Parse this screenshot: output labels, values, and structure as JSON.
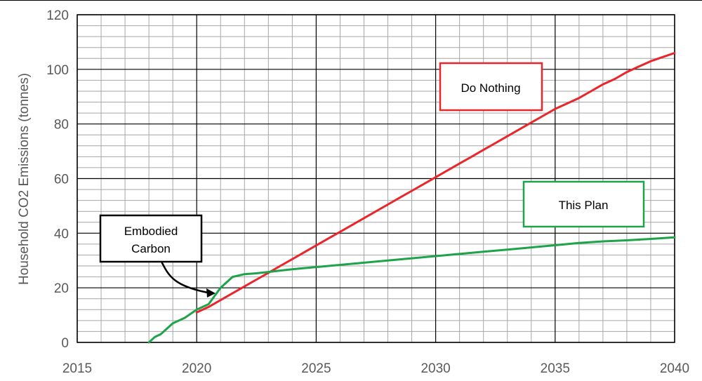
{
  "chart_data": {
    "type": "line",
    "title": "",
    "xlabel": "",
    "ylabel": "Household CO2 Emissions (tonnes)",
    "xlim": [
      2015,
      2040
    ],
    "ylim": [
      0,
      120
    ],
    "x_ticks": [
      "2015",
      "2020",
      "2025",
      "2030",
      "2035",
      "2040"
    ],
    "y_ticks": [
      "0",
      "20",
      "40",
      "60",
      "80",
      "100",
      "120"
    ],
    "grid": true,
    "series": [
      {
        "name": "Do Nothing",
        "color": "#e8262b",
        "x": [
          2020.0,
          2020.5,
          2021.0,
          2021.5,
          2022.0,
          2022.5,
          2023.0,
          2023.5,
          2024.0,
          2024.5,
          2025.0,
          2025.5,
          2026.0,
          2026.5,
          2027.0,
          2027.5,
          2028.0,
          2028.5,
          2029.0,
          2029.5,
          2030.0,
          2030.5,
          2031.0,
          2031.5,
          2032.0,
          2032.5,
          2033.0,
          2033.5,
          2034.0,
          2034.5,
          2035.0,
          2035.5,
          2036.0,
          2036.5,
          2037.0,
          2037.5,
          2038.0,
          2038.5,
          2039.0,
          2039.5,
          2040.0
        ],
        "y": [
          11.0,
          13.0,
          15.5,
          18.0,
          20.5,
          23.0,
          25.5,
          28.0,
          30.5,
          33.0,
          35.5,
          38.0,
          40.5,
          43.0,
          45.5,
          48.0,
          50.5,
          53.0,
          55.5,
          58.0,
          60.5,
          63.0,
          65.5,
          68.0,
          70.5,
          73.0,
          75.5,
          78.0,
          80.5,
          83.0,
          85.5,
          87.5,
          89.5,
          92.0,
          94.5,
          96.5,
          99.0,
          101.0,
          103.0,
          104.5,
          106.0
        ]
      },
      {
        "name": "This Plan",
        "color": "#1fa34a",
        "x": [
          2018.0,
          2018.25,
          2018.5,
          2018.75,
          2019.0,
          2019.25,
          2019.5,
          2019.75,
          2020.0,
          2020.25,
          2020.5,
          2020.75,
          2021.0,
          2021.25,
          2021.5,
          2021.75,
          2022.0,
          2022.5,
          2023.0,
          2023.5,
          2024.0,
          2024.5,
          2025.0,
          2026.0,
          2027.0,
          2028.0,
          2029.0,
          2030.0,
          2031.0,
          2032.0,
          2033.0,
          2034.0,
          2035.0,
          2036.0,
          2037.0,
          2038.0,
          2039.0,
          2040.0
        ],
        "y": [
          0.0,
          2.0,
          3.0,
          5.0,
          7.0,
          8.0,
          9.0,
          10.5,
          12.0,
          13.0,
          14.0,
          17.0,
          20.0,
          22.0,
          24.0,
          24.5,
          25.0,
          25.3,
          25.8,
          26.3,
          26.8,
          27.2,
          27.6,
          28.4,
          29.2,
          30.0,
          30.8,
          31.6,
          32.4,
          33.2,
          34.0,
          34.8,
          35.6,
          36.4,
          37.0,
          37.4,
          37.9,
          38.5
        ]
      }
    ],
    "annotations": [
      {
        "id": "do-nothing",
        "lines": [
          "Do Nothing"
        ],
        "border": "#e8262b"
      },
      {
        "id": "this-plan",
        "lines": [
          "This Plan"
        ],
        "border": "#1fa34a"
      },
      {
        "id": "embodied-carbon",
        "lines": [
          "Embodied",
          "Carbon"
        ],
        "border": "#000000"
      }
    ]
  }
}
